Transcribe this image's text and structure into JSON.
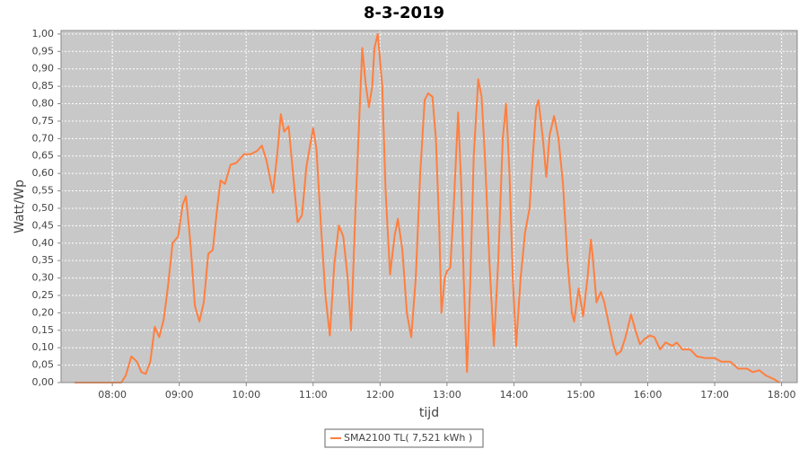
{
  "chart_data": {
    "type": "line",
    "title": "8-3-2019",
    "x_label": "tijd",
    "y_label": "Watt/Wp",
    "x": [
      "07:26",
      "08:08",
      "08:12",
      "08:17",
      "08:22",
      "08:26",
      "08:30",
      "08:34",
      "08:38",
      "08:42",
      "08:46",
      "08:50",
      "08:54",
      "08:59",
      "09:03",
      "09:06",
      "09:10",
      "09:14",
      "09:18",
      "09:22",
      "09:26",
      "09:30",
      "09:34",
      "09:37",
      "09:41",
      "09:46",
      "09:51",
      "09:58",
      "10:04",
      "10:10",
      "10:14",
      "10:18",
      "10:24",
      "10:28",
      "10:31",
      "10:34",
      "10:38",
      "10:42",
      "10:46",
      "10:50",
      "10:54",
      "11:00",
      "11:03",
      "11:07",
      "11:11",
      "11:15",
      "11:19",
      "11:23",
      "11:27",
      "11:31",
      "11:34",
      "11:38",
      "11:44",
      "11:47",
      "11:50",
      "11:53",
      "11:55",
      "11:58",
      "12:02",
      "12:05",
      "12:09",
      "12:13",
      "12:16",
      "12:20",
      "12:24",
      "12:28",
      "12:32",
      "12:36",
      "12:40",
      "12:43",
      "12:47",
      "12:50",
      "12:53",
      "12:55",
      "12:58",
      "13:00",
      "13:03",
      "13:06",
      "13:10",
      "13:13",
      "13:15",
      "13:18",
      "13:21",
      "13:24",
      "13:28",
      "13:31",
      "13:34",
      "13:38",
      "13:42",
      "13:46",
      "13:50",
      "13:53",
      "13:56",
      "13:59",
      "14:02",
      "14:06",
      "14:10",
      "14:14",
      "14:17",
      "14:20",
      "14:22",
      "14:26",
      "14:29",
      "14:32",
      "14:36",
      "14:40",
      "14:44",
      "14:48",
      "14:52",
      "14:54",
      "14:58",
      "15:02",
      "15:06",
      "15:09",
      "15:11",
      "15:14",
      "15:18",
      "15:21",
      "15:25",
      "15:29",
      "15:32",
      "15:36",
      "15:40",
      "15:45",
      "15:49",
      "15:53",
      "15:57",
      "16:02",
      "16:06",
      "16:11",
      "16:16",
      "16:22",
      "16:26",
      "16:31",
      "16:38",
      "16:44",
      "16:52",
      "17:00",
      "17:06",
      "17:14",
      "17:21",
      "17:29",
      "17:34",
      "17:40",
      "17:46",
      "17:53",
      "17:58"
    ],
    "series": [
      {
        "name": "SMA2100 TL( 7,521 kWh )",
        "color": "#ff7f3f",
        "values": [
          0,
          0,
          0.02,
          0.075,
          0.06,
          0.03,
          0.025,
          0.06,
          0.16,
          0.13,
          0.18,
          0.28,
          0.4,
          0.42,
          0.51,
          0.535,
          0.4,
          0.22,
          0.175,
          0.23,
          0.37,
          0.38,
          0.5,
          0.58,
          0.57,
          0.625,
          0.63,
          0.655,
          0.655,
          0.665,
          0.68,
          0.64,
          0.545,
          0.66,
          0.77,
          0.72,
          0.735,
          0.6,
          0.46,
          0.48,
          0.62,
          0.73,
          0.67,
          0.45,
          0.25,
          0.135,
          0.34,
          0.45,
          0.42,
          0.3,
          0.15,
          0.5,
          0.96,
          0.86,
          0.79,
          0.85,
          0.96,
          1.0,
          0.85,
          0.55,
          0.31,
          0.42,
          0.47,
          0.38,
          0.2,
          0.13,
          0.3,
          0.6,
          0.81,
          0.83,
          0.82,
          0.7,
          0.45,
          0.2,
          0.3,
          0.32,
          0.33,
          0.5,
          0.775,
          0.55,
          0.3,
          0.03,
          0.3,
          0.65,
          0.87,
          0.82,
          0.65,
          0.35,
          0.105,
          0.35,
          0.7,
          0.8,
          0.6,
          0.3,
          0.105,
          0.3,
          0.43,
          0.5,
          0.65,
          0.79,
          0.81,
          0.7,
          0.59,
          0.71,
          0.765,
          0.7,
          0.57,
          0.35,
          0.2,
          0.175,
          0.27,
          0.19,
          0.3,
          0.41,
          0.35,
          0.23,
          0.26,
          0.23,
          0.17,
          0.11,
          0.08,
          0.09,
          0.13,
          0.195,
          0.15,
          0.11,
          0.125,
          0.135,
          0.13,
          0.095,
          0.115,
          0.105,
          0.115,
          0.095,
          0.095,
          0.075,
          0.07,
          0.07,
          0.06,
          0.06,
          0.04,
          0.04,
          0.03,
          0.035,
          0.02,
          0.01,
          0
        ]
      }
    ],
    "xlim": [
      "07:14",
      "18:14"
    ],
    "xticks": [
      "08:00",
      "09:00",
      "10:00",
      "11:00",
      "12:00",
      "13:00",
      "14:00",
      "15:00",
      "16:00",
      "17:00",
      "18:00"
    ],
    "ylim": [
      0,
      1.01
    ],
    "yticks": [
      {
        "value": 0,
        "label": "0,00"
      },
      {
        "value": 0.05,
        "label": "0,05"
      },
      {
        "value": 0.1,
        "label": "0,10"
      },
      {
        "value": 0.15,
        "label": "0,15"
      },
      {
        "value": 0.2,
        "label": "0,20"
      },
      {
        "value": 0.25,
        "label": "0,25"
      },
      {
        "value": 0.3,
        "label": "0,30"
      },
      {
        "value": 0.35,
        "label": "0,35"
      },
      {
        "value": 0.4,
        "label": "0,40"
      },
      {
        "value": 0.45,
        "label": "0,45"
      },
      {
        "value": 0.5,
        "label": "0,50"
      },
      {
        "value": 0.55,
        "label": "0,55"
      },
      {
        "value": 0.6,
        "label": "0,60"
      },
      {
        "value": 0.65,
        "label": "0,65"
      },
      {
        "value": 0.7,
        "label": "0,70"
      },
      {
        "value": 0.75,
        "label": "0,75"
      },
      {
        "value": 0.8,
        "label": "0,80"
      },
      {
        "value": 0.85,
        "label": "0,85"
      },
      {
        "value": 0.9,
        "label": "0,90"
      },
      {
        "value": 0.95,
        "label": "0,95"
      },
      {
        "value": 1,
        "label": "1,00"
      }
    ],
    "grid": true,
    "legend": "bottom"
  }
}
